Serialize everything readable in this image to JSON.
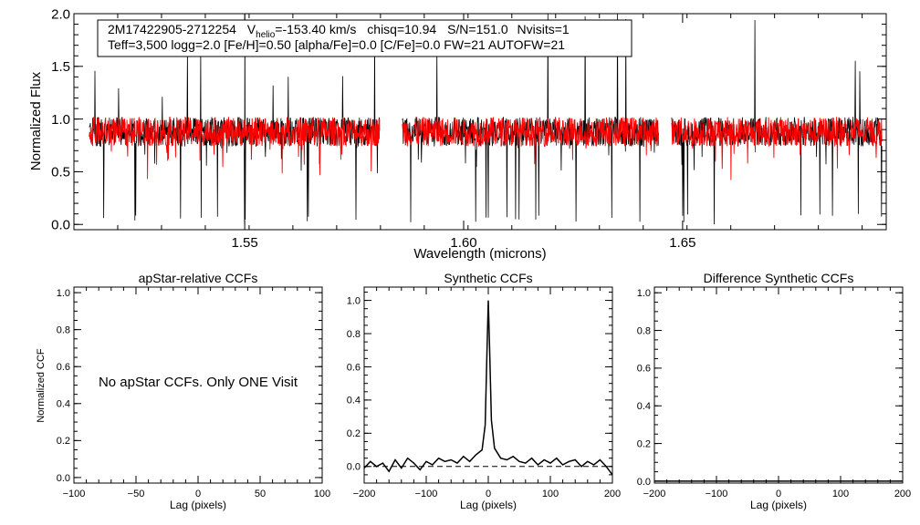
{
  "chart_data": [
    {
      "type": "line",
      "id": "spectrum",
      "header_line1": {
        "star": "2M17422905-2712254",
        "vhelio_label": "V",
        "vhelio_sub": "helio",
        "vhelio_value": "=-153.40 km/s",
        "chisq": "chisq=10.94",
        "sn": "S/N=151.0",
        "nvisits": "Nvisits=1"
      },
      "header_line2": "Teff=3,500 logg=2.0 [Fe/H]=0.50 [alpha/Fe]=0.0 [C/Fe]=0.0 FW=21 AUTOFW=21",
      "xlabel": "Wavelength (microns)",
      "ylabel": "Normalized Flux",
      "xlim": [
        1.511,
        1.6965
      ],
      "ylim": [
        -0.05,
        2.0
      ],
      "xticks": [
        1.55,
        1.6,
        1.65
      ],
      "xtick_labels": [
        "1.55",
        "1.60",
        "1.65"
      ],
      "yticks": [
        0.0,
        0.5,
        1.0,
        1.5,
        2.0
      ],
      "ytick_labels": [
        "0.0",
        "0.5",
        "1.0",
        "1.5",
        "2.0"
      ],
      "detector_chips": [
        [
          1.5145,
          1.5808
        ],
        [
          1.586,
          1.6445
        ],
        [
          1.6475,
          1.6955
        ]
      ],
      "series": [
        {
          "name": "observed",
          "color": "#000000",
          "baseline": 0.88
        },
        {
          "name": "model",
          "color": "#ff0000",
          "baseline": 0.88
        }
      ]
    },
    {
      "type": "line",
      "id": "apstar-ccf",
      "title": "apStar-relative CCFs",
      "xlabel": "Lag (pixels)",
      "ylabel": "Normalized CCF",
      "xlim": [
        -100,
        100
      ],
      "ylim": [
        -0.03,
        1.03
      ],
      "xticks": [
        -100,
        -50,
        0,
        50,
        100
      ],
      "xtick_labels": [
        "−100",
        "−50",
        "0",
        "50",
        "100"
      ],
      "yticks": [
        0.0,
        0.2,
        0.4,
        0.6,
        0.8,
        1.0
      ],
      "ytick_labels": [
        "0.0",
        "0.2",
        "0.4",
        "0.6",
        "0.8",
        "1.0"
      ],
      "annotation": "No apStar CCFs.  Only ONE Visit"
    },
    {
      "type": "line",
      "id": "synthetic-ccf",
      "title": "Synthetic CCFs",
      "xlabel": "Lag (pixels)",
      "xlim": [
        -200,
        200
      ],
      "ylim": [
        -0.1,
        1.08
      ],
      "xticks": [
        -200,
        -100,
        0,
        100,
        200
      ],
      "xtick_labels": [
        "−200",
        "−100",
        "0",
        "100",
        "200"
      ],
      "yticks": [
        0.0,
        0.2,
        0.4,
        0.6,
        0.8,
        1.0
      ],
      "ytick_labels": [
        "0.0",
        "0.2",
        "0.4",
        "0.6",
        "0.8",
        "1.0"
      ],
      "zero_line": "dashed",
      "peak": {
        "lag": 0,
        "value": 1.0
      },
      "wing_level": 0.1,
      "series": [
        {
          "name": "ccf",
          "x": [
            -200,
            -190,
            -180,
            -170,
            -160,
            -150,
            -140,
            -130,
            -120,
            -110,
            -100,
            -90,
            -80,
            -70,
            -60,
            -50,
            -40,
            -30,
            -20,
            -10,
            -5,
            -2,
            0,
            2,
            5,
            10,
            20,
            30,
            40,
            50,
            60,
            70,
            80,
            90,
            100,
            110,
            120,
            130,
            140,
            150,
            160,
            170,
            180,
            190,
            200
          ],
          "values": [
            -0.01,
            0.03,
            0.0,
            0.02,
            -0.03,
            0.04,
            -0.01,
            0.05,
            0.02,
            -0.02,
            0.03,
            0.01,
            0.05,
            0.03,
            0.04,
            0.02,
            0.06,
            0.03,
            0.07,
            0.1,
            0.25,
            0.7,
            1.0,
            0.72,
            0.28,
            0.11,
            0.05,
            0.04,
            0.06,
            0.03,
            0.02,
            0.05,
            0.01,
            0.04,
            0.02,
            0.05,
            0.01,
            0.03,
            0.04,
            0.0,
            0.03,
            0.01,
            0.04,
            0.0,
            -0.05
          ]
        }
      ]
    },
    {
      "type": "line",
      "id": "difference-ccf",
      "title": "Difference Synthetic CCFs",
      "xlabel": "Lag (pixels)",
      "xlim": [
        -200,
        200
      ],
      "ylim": [
        -0.01,
        1.03
      ],
      "xticks": [
        -200,
        -100,
        0,
        100,
        200
      ],
      "xtick_labels": [
        "−200",
        "−100",
        "0",
        "100",
        "200"
      ],
      "yticks": [
        0.0,
        0.2,
        0.4,
        0.6,
        0.8,
        1.0
      ],
      "ytick_labels": [
        "0.0",
        "0.2",
        "0.4",
        "0.6",
        "0.8",
        "1.0"
      ],
      "series": [
        {
          "name": "difference",
          "x": [
            -200,
            200
          ],
          "values": [
            0.0,
            0.0
          ]
        }
      ]
    }
  ]
}
